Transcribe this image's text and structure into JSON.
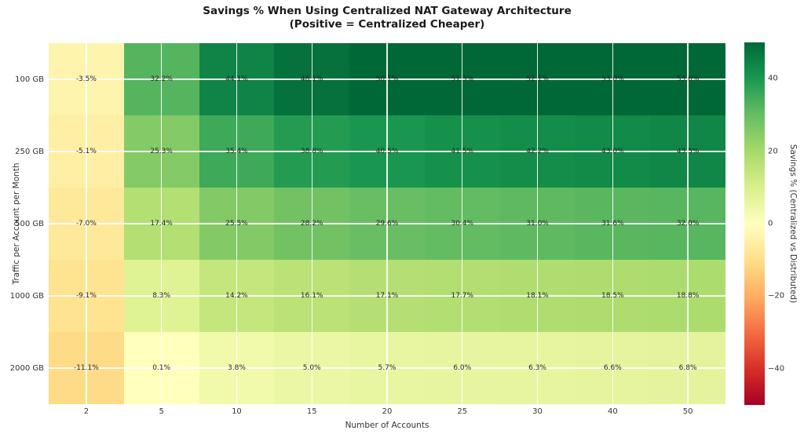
{
  "figure": {
    "background": "#ffffff",
    "text_color": "#262626"
  },
  "chart_data": {
    "type": "heatmap",
    "title": "Savings % When Using Centralized NAT Gateway Architecture",
    "subtitle": "(Positive = Centralized Cheaper)",
    "xlabel": "Number of Accounts",
    "ylabel": "Traffic per Account per Month",
    "x_categories": [
      "2",
      "5",
      "10",
      "15",
      "20",
      "25",
      "30",
      "40",
      "50"
    ],
    "y_categories": [
      "100 GB",
      "250 GB",
      "500 GB",
      "1000 GB",
      "2000 GB"
    ],
    "values": [
      [
        -3.5,
        32.2,
        44.1,
        48.1,
        50.1,
        51.3,
        52.1,
        53.0,
        53.6
      ],
      [
        -5.1,
        25.3,
        35.4,
        38.8,
        40.5,
        41.5,
        42.2,
        43.0,
        43.5
      ],
      [
        -7.0,
        17.4,
        25.5,
        28.2,
        29.6,
        30.4,
        31.0,
        31.6,
        32.0
      ],
      [
        -9.1,
        8.3,
        14.2,
        16.1,
        17.1,
        17.7,
        18.1,
        18.5,
        18.8
      ],
      [
        -11.1,
        0.1,
        3.8,
        5.0,
        5.7,
        6.0,
        6.3,
        6.6,
        6.8
      ]
    ],
    "value_suffix": "%",
    "grid": {
      "on": true,
      "color": "rgba(255,255,255,0.9)"
    },
    "colormap": {
      "name": "RdYlGn",
      "anchors": [
        "#a50026",
        "#d73027",
        "#f46d43",
        "#fdae61",
        "#fee08b",
        "#ffffbf",
        "#d9ef8b",
        "#a6d96a",
        "#66bd63",
        "#1a9850",
        "#006837"
      ]
    },
    "colorbar": {
      "label": "Savings % (Centralized vs Distributed)",
      "vmin": -50,
      "vmax": 50,
      "ticks": [
        {
          "value": 40,
          "label": "40"
        },
        {
          "value": 20,
          "label": "20"
        },
        {
          "value": 0,
          "label": "0"
        },
        {
          "value": -20,
          "label": "−20"
        },
        {
          "value": -40,
          "label": "−40"
        }
      ],
      "legend_position": "right"
    }
  }
}
